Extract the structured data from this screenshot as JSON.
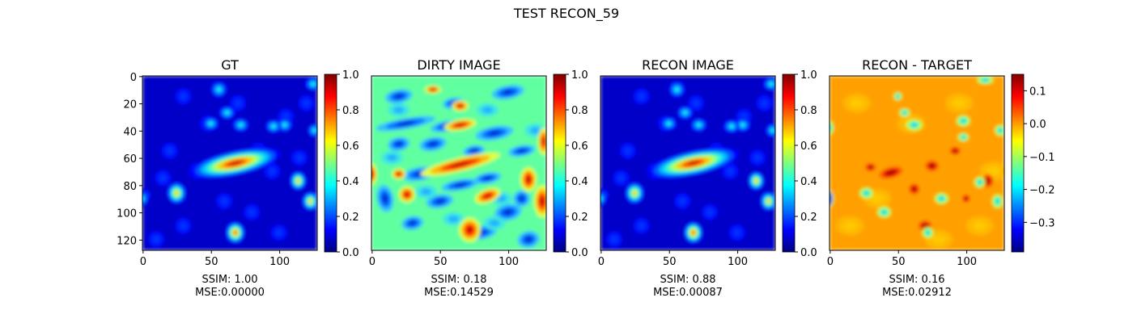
{
  "figure": {
    "suptitle": "TEST RECON_59"
  },
  "colormap_stops": [
    "#00007f",
    "#0000ff",
    "#007fff",
    "#00ffff",
    "#7fff7f",
    "#ffff00",
    "#ff7f00",
    "#ff0000",
    "#7f0000"
  ],
  "chart_data": [
    {
      "type": "heatmap",
      "title": "GT",
      "image_size": [
        128,
        128
      ],
      "x_ticks": [
        0,
        50,
        100
      ],
      "y_ticks": [
        0,
        20,
        40,
        60,
        80,
        100,
        120
      ],
      "colorbar": {
        "min": 0.0,
        "max": 1.0,
        "ticks": [
          "0.0",
          "0.2",
          "0.4",
          "0.6",
          "0.8",
          "1.0"
        ],
        "tick_values": [
          0.0,
          0.2,
          0.4,
          0.6,
          0.8,
          1.0
        ]
      },
      "caption": [
        "SSIM: 1.00",
        "MSE:0.00000"
      ],
      "style": "gt"
    },
    {
      "type": "heatmap",
      "title": "DIRTY IMAGE",
      "image_size": [
        128,
        128
      ],
      "x_ticks": [
        0,
        50,
        100
      ],
      "y_ticks": [],
      "colorbar": {
        "min": 0.0,
        "max": 1.0,
        "ticks": [
          "0.0",
          "0.2",
          "0.4",
          "0.6",
          "0.8",
          "1.0"
        ],
        "tick_values": [
          0.0,
          0.2,
          0.4,
          0.6,
          0.8,
          1.0
        ]
      },
      "caption": [
        "SSIM: 0.18",
        "MSE:0.14529"
      ],
      "style": "dirty"
    },
    {
      "type": "heatmap",
      "title": "RECON IMAGE",
      "image_size": [
        128,
        128
      ],
      "x_ticks": [
        0,
        50,
        100
      ],
      "y_ticks": [],
      "colorbar": {
        "min": 0.0,
        "max": 1.0,
        "ticks": [
          "0.0",
          "0.2",
          "0.4",
          "0.6",
          "0.8",
          "1.0"
        ],
        "tick_values": [
          0.0,
          0.2,
          0.4,
          0.6,
          0.8,
          1.0
        ]
      },
      "caption": [
        "SSIM: 0.88",
        "MSE:0.00087"
      ],
      "style": "recon"
    },
    {
      "type": "heatmap",
      "title": "RECON - TARGET",
      "image_size": [
        128,
        128
      ],
      "x_ticks": [
        0,
        50,
        100
      ],
      "y_ticks": [],
      "colorbar": {
        "min": -0.39,
        "max": 0.15,
        "ticks": [
          "0.1",
          "0.0",
          "−0.1",
          "−0.2",
          "−0.3"
        ],
        "tick_values": [
          0.1,
          0.0,
          -0.1,
          -0.2,
          -0.3
        ]
      },
      "caption": [
        "SSIM: 0.16",
        "MSE:0.02912"
      ],
      "style": "diff"
    }
  ]
}
